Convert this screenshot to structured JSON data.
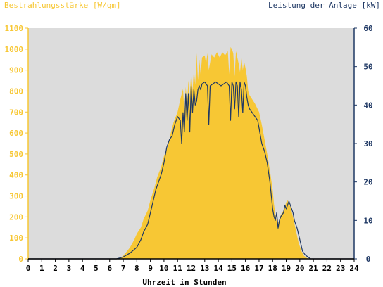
{
  "chart_data": {
    "type": "area",
    "y_left_label": "Bestrahlungsstärke [W/qm]",
    "y_right_label": "Leistung der Anlage [kW]",
    "xlabel": "Uhrzeit in Stunden",
    "xlim": [
      0,
      24
    ],
    "x_ticks": [
      "0",
      "1",
      "2",
      "3",
      "4",
      "5",
      "6",
      "7",
      "8",
      "9",
      "10",
      "11",
      "12",
      "13",
      "14",
      "15",
      "16",
      "17",
      "18",
      "19",
      "20",
      "21",
      "22",
      "23",
      "24"
    ],
    "ylim_left": [
      0,
      1100
    ],
    "y_left_ticks": [
      "0",
      "100",
      "200",
      "300",
      "400",
      "500",
      "600",
      "700",
      "800",
      "900",
      "1000",
      "1100"
    ],
    "ylim_right": [
      0,
      60
    ],
    "y_right_ticks": [
      "0",
      "10",
      "20",
      "30",
      "40",
      "50",
      "60"
    ],
    "grid": false,
    "colors": {
      "plot_background": "#dcdcdc",
      "irradiance_fill": "#f7c734",
      "power_line": "#1f3864",
      "left_axis": "#f7c734",
      "right_axis": "#1f3864"
    },
    "series": [
      {
        "axis": "left",
        "x": [
          0,
          6.5,
          6.8,
          7.0,
          7.2,
          7.5,
          7.8,
          8.0,
          8.3,
          8.5,
          8.8,
          9.0,
          9.3,
          9.5,
          9.8,
          10.0,
          10.3,
          10.5,
          10.7,
          11.0,
          11.2,
          11.4,
          11.5,
          11.6,
          11.7,
          11.8,
          11.9,
          12.0,
          12.1,
          12.2,
          12.3,
          12.4,
          12.5,
          12.6,
          12.7,
          12.8,
          13.0,
          13.1,
          13.2,
          13.3,
          13.5,
          13.7,
          13.9,
          14.1,
          14.3,
          14.5,
          14.7,
          14.8,
          14.9,
          15.0,
          15.1,
          15.2,
          15.3,
          15.4,
          15.5,
          15.6,
          15.7,
          15.8,
          15.9,
          16.0,
          16.1,
          16.2,
          16.3,
          16.5,
          16.7,
          17.0,
          17.2,
          17.4,
          17.6,
          17.8,
          18.0,
          18.1,
          18.2,
          18.3,
          18.4,
          18.5,
          18.6,
          18.8,
          18.9,
          19.0,
          19.1,
          19.2,
          19.3,
          19.5,
          19.7,
          19.9,
          20.1,
          20.3,
          20.5,
          20.7,
          20.9,
          21.2,
          21.5,
          24
        ],
        "y": [
          0,
          0,
          5,
          15,
          30,
          55,
          90,
          120,
          150,
          190,
          230,
          280,
          340,
          390,
          440,
          490,
          540,
          600,
          650,
          700,
          760,
          810,
          700,
          820,
          740,
          850,
          770,
          890,
          800,
          900,
          830,
          980,
          850,
          950,
          880,
          960,
          970,
          930,
          980,
          900,
          975,
          960,
          985,
          960,
          985,
          970,
          990,
          880,
          1010,
          1000,
          980,
          870,
          990,
          960,
          930,
          890,
          960,
          900,
          940,
          910,
          870,
          800,
          780,
          760,
          740,
          700,
          640,
          570,
          500,
          420,
          330,
          260,
          210,
          180,
          170,
          190,
          210,
          230,
          250,
          270,
          280,
          260,
          250,
          200,
          140,
          80,
          40,
          15,
          5,
          0,
          0,
          0,
          0,
          0
        ]
      },
      {
        "axis": "right",
        "x": [
          0,
          6.5,
          7.0,
          7.5,
          8.0,
          8.3,
          8.5,
          8.8,
          9.0,
          9.2,
          9.4,
          9.6,
          9.8,
          10.0,
          10.2,
          10.4,
          10.6,
          10.8,
          11.0,
          11.2,
          11.3,
          11.4,
          11.5,
          11.6,
          11.7,
          11.8,
          11.9,
          12.0,
          12.1,
          12.2,
          12.3,
          12.4,
          12.5,
          12.6,
          12.7,
          12.8,
          13.0,
          13.2,
          13.3,
          13.4,
          13.6,
          13.8,
          14.0,
          14.2,
          14.4,
          14.6,
          14.8,
          14.9,
          15.0,
          15.1,
          15.2,
          15.3,
          15.4,
          15.5,
          15.6,
          15.7,
          15.8,
          15.9,
          16.0,
          16.1,
          16.2,
          16.3,
          16.5,
          16.7,
          16.9,
          17.0,
          17.2,
          17.4,
          17.6,
          17.8,
          18.0,
          18.1,
          18.2,
          18.3,
          18.4,
          18.5,
          18.6,
          18.8,
          18.9,
          19.0,
          19.1,
          19.2,
          19.3,
          19.4,
          19.5,
          19.6,
          19.8,
          20.0,
          20.2,
          20.4,
          20.6,
          20.8,
          21.0,
          21.5,
          24
        ],
        "y": [
          0,
          0,
          0.5,
          1.5,
          3,
          5,
          7,
          9,
          12,
          15,
          18,
          20,
          22,
          25,
          29,
          31,
          32,
          35,
          37,
          36,
          30,
          38,
          33,
          43,
          36,
          43,
          33,
          45,
          38,
          44,
          40,
          41,
          44,
          45,
          44,
          45.5,
          46,
          45,
          35,
          45,
          45.5,
          46,
          45.5,
          45,
          45.5,
          46,
          45,
          36,
          46,
          45,
          39,
          46,
          45,
          37,
          46,
          44,
          38,
          46,
          45,
          42,
          40,
          39,
          38,
          37,
          36,
          34,
          30,
          28,
          25,
          20,
          13,
          11,
          10,
          12,
          8,
          10,
          11,
          12,
          14,
          13,
          14,
          15,
          14,
          13,
          12,
          10,
          8,
          5,
          2,
          1,
          0.5,
          0,
          0,
          0,
          0
        ]
      }
    ]
  }
}
